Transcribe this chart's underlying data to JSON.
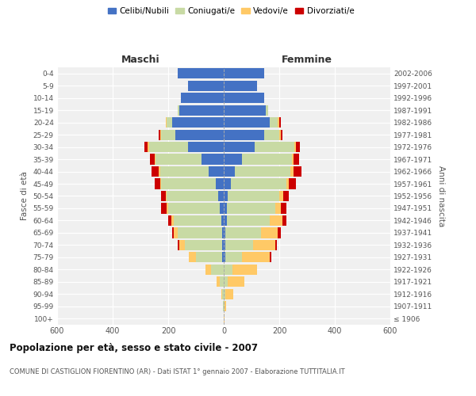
{
  "age_groups": [
    "100+",
    "95-99",
    "90-94",
    "85-89",
    "80-84",
    "75-79",
    "70-74",
    "65-69",
    "60-64",
    "55-59",
    "50-54",
    "45-49",
    "40-44",
    "35-39",
    "30-34",
    "25-29",
    "20-24",
    "15-19",
    "10-14",
    "5-9",
    "0-4"
  ],
  "birth_years": [
    "≤ 1906",
    "1907-1911",
    "1912-1916",
    "1917-1921",
    "1922-1926",
    "1927-1931",
    "1932-1936",
    "1937-1941",
    "1942-1946",
    "1947-1951",
    "1952-1956",
    "1957-1961",
    "1962-1966",
    "1967-1971",
    "1972-1976",
    "1977-1981",
    "1982-1986",
    "1987-1991",
    "1992-1996",
    "1997-2001",
    "2002-2006"
  ],
  "maschi": {
    "celibi": [
      0,
      0,
      0,
      0,
      0,
      5,
      5,
      5,
      10,
      15,
      20,
      30,
      55,
      80,
      130,
      175,
      185,
      160,
      155,
      130,
      165
    ],
    "coniugati": [
      0,
      3,
      5,
      15,
      45,
      95,
      135,
      160,
      170,
      185,
      185,
      195,
      175,
      165,
      140,
      50,
      20,
      5,
      0,
      0,
      0
    ],
    "vedovi": [
      0,
      0,
      5,
      10,
      20,
      25,
      20,
      15,
      10,
      5,
      5,
      5,
      5,
      5,
      5,
      5,
      5,
      0,
      0,
      0,
      0
    ],
    "divorziati": [
      0,
      0,
      0,
      0,
      0,
      0,
      5,
      5,
      10,
      20,
      15,
      20,
      25,
      15,
      10,
      5,
      0,
      0,
      0,
      0,
      0
    ]
  },
  "femmine": {
    "nubili": [
      0,
      0,
      0,
      0,
      0,
      5,
      5,
      5,
      10,
      10,
      15,
      25,
      40,
      65,
      110,
      145,
      165,
      150,
      145,
      120,
      145
    ],
    "coniugate": [
      0,
      3,
      5,
      15,
      30,
      60,
      100,
      130,
      155,
      175,
      185,
      200,
      200,
      180,
      145,
      55,
      30,
      10,
      0,
      0,
      0
    ],
    "vedove": [
      2,
      5,
      30,
      60,
      90,
      100,
      80,
      60,
      45,
      20,
      15,
      10,
      10,
      5,
      5,
      5,
      5,
      0,
      0,
      0,
      0
    ],
    "divorziate": [
      0,
      0,
      0,
      0,
      0,
      5,
      5,
      10,
      15,
      20,
      20,
      25,
      30,
      20,
      15,
      5,
      5,
      0,
      0,
      0,
      0
    ]
  },
  "colors": {
    "celibi": "#4472C4",
    "coniugati": "#c8daa4",
    "vedovi": "#ffc966",
    "divorziati": "#cc0000"
  },
  "legend_labels": [
    "Celibi/Nubili",
    "Coniugati/e",
    "Vedovi/e",
    "Divorziati/e"
  ],
  "title": "Popolazione per età, sesso e stato civile - 2007",
  "subtitle": "COMUNE DI CASTIGLION FIORENTINO (AR) - Dati ISTAT 1° gennaio 2007 - Elaborazione TUTTITALIA.IT",
  "ylabel_left": "Fasce di età",
  "ylabel_right": "Anni di nascita",
  "xlabel_left": "Maschi",
  "xlabel_right": "Femmine",
  "xlim": 600,
  "background_color": "#ffffff",
  "plot_bg_color": "#f0f0f0"
}
